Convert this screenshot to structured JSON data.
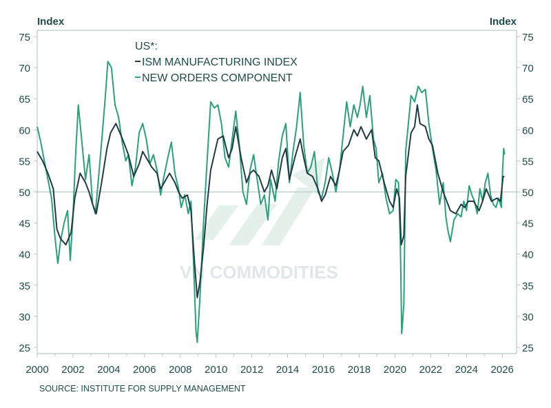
{
  "chart_data": {
    "type": "line",
    "y_axis_title_left": "Index",
    "y_axis_title_right": "Index",
    "legend_title": "US*:",
    "legend_position": "top-left",
    "source": "SOURCE: INSTITUTE FOR SUPPLY MANAGEMENT",
    "watermark": "VN COMMODITIES",
    "xlim": [
      2000,
      2026.8
    ],
    "ylim": [
      24,
      76
    ],
    "x_ticks": [
      "2000",
      "2002",
      "2004",
      "2006",
      "2008",
      "2010",
      "2012",
      "2014",
      "2016",
      "2018",
      "2020",
      "2022",
      "2024",
      "2026"
    ],
    "y_ticks": [
      "25",
      "30",
      "35",
      "40",
      "45",
      "50",
      "55",
      "60",
      "65",
      "70",
      "75"
    ],
    "reference_line": 50,
    "grid": false,
    "colors": {
      "ism": "#1f3a44",
      "new_orders": "#2aa07a",
      "axis": "#b9c7c5",
      "text": "#1f4a4a",
      "reference": "#b9c7c5"
    },
    "series": [
      {
        "name": "ISM MANUFACTURING INDEX",
        "points": [
          [
            2000.0,
            56.5
          ],
          [
            2000.3,
            55.0
          ],
          [
            2000.6,
            53.0
          ],
          [
            2000.9,
            50.5
          ],
          [
            2001.1,
            44.0
          ],
          [
            2001.3,
            42.5
          ],
          [
            2001.6,
            41.5
          ],
          [
            2001.9,
            43.5
          ],
          [
            2002.1,
            49.0
          ],
          [
            2002.4,
            53.0
          ],
          [
            2002.7,
            51.5
          ],
          [
            2002.9,
            50.0
          ],
          [
            2003.1,
            48.0
          ],
          [
            2003.3,
            46.5
          ],
          [
            2003.6,
            51.5
          ],
          [
            2003.9,
            57.0
          ],
          [
            2004.1,
            59.5
          ],
          [
            2004.4,
            61.0
          ],
          [
            2004.7,
            59.0
          ],
          [
            2004.9,
            57.5
          ],
          [
            2005.1,
            56.0
          ],
          [
            2005.4,
            52.5
          ],
          [
            2005.7,
            54.5
          ],
          [
            2005.9,
            56.5
          ],
          [
            2006.1,
            55.5
          ],
          [
            2006.4,
            54.0
          ],
          [
            2006.7,
            53.0
          ],
          [
            2006.9,
            50.5
          ],
          [
            2007.1,
            51.5
          ],
          [
            2007.4,
            53.0
          ],
          [
            2007.7,
            51.5
          ],
          [
            2007.9,
            50.0
          ],
          [
            2008.1,
            49.0
          ],
          [
            2008.4,
            49.5
          ],
          [
            2008.6,
            47.0
          ],
          [
            2008.8,
            38.5
          ],
          [
            2008.95,
            33.0
          ],
          [
            2009.1,
            35.5
          ],
          [
            2009.3,
            41.0
          ],
          [
            2009.5,
            48.0
          ],
          [
            2009.7,
            53.5
          ],
          [
            2009.9,
            56.0
          ],
          [
            2010.1,
            58.5
          ],
          [
            2010.4,
            59.0
          ],
          [
            2010.7,
            55.5
          ],
          [
            2010.9,
            57.0
          ],
          [
            2011.1,
            60.5
          ],
          [
            2011.4,
            55.5
          ],
          [
            2011.7,
            51.5
          ],
          [
            2011.9,
            53.0
          ],
          [
            2012.1,
            53.5
          ],
          [
            2012.4,
            52.5
          ],
          [
            2012.7,
            50.0
          ],
          [
            2012.9,
            51.0
          ],
          [
            2013.1,
            53.5
          ],
          [
            2013.4,
            50.5
          ],
          [
            2013.7,
            55.5
          ],
          [
            2013.9,
            57.0
          ],
          [
            2014.1,
            52.0
          ],
          [
            2014.4,
            55.5
          ],
          [
            2014.7,
            58.5
          ],
          [
            2014.9,
            55.5
          ],
          [
            2015.1,
            53.0
          ],
          [
            2015.4,
            52.5
          ],
          [
            2015.7,
            50.5
          ],
          [
            2015.9,
            48.5
          ],
          [
            2016.1,
            49.5
          ],
          [
            2016.4,
            52.5
          ],
          [
            2016.7,
            51.0
          ],
          [
            2016.9,
            53.5
          ],
          [
            2017.1,
            56.5
          ],
          [
            2017.4,
            57.5
          ],
          [
            2017.7,
            60.0
          ],
          [
            2017.9,
            59.0
          ],
          [
            2018.1,
            60.5
          ],
          [
            2018.4,
            58.5
          ],
          [
            2018.7,
            60.0
          ],
          [
            2018.9,
            55.5
          ],
          [
            2019.1,
            55.0
          ],
          [
            2019.4,
            51.5
          ],
          [
            2019.7,
            48.5
          ],
          [
            2019.9,
            47.5
          ],
          [
            2020.1,
            50.5
          ],
          [
            2020.25,
            49.0
          ],
          [
            2020.35,
            41.5
          ],
          [
            2020.5,
            43.0
          ],
          [
            2020.6,
            52.5
          ],
          [
            2020.9,
            59.5
          ],
          [
            2021.1,
            60.5
          ],
          [
            2021.25,
            64.0
          ],
          [
            2021.4,
            61.0
          ],
          [
            2021.7,
            60.5
          ],
          [
            2021.9,
            58.5
          ],
          [
            2022.1,
            57.5
          ],
          [
            2022.4,
            53.0
          ],
          [
            2022.7,
            50.0
          ],
          [
            2022.9,
            48.5
          ],
          [
            2023.1,
            47.0
          ],
          [
            2023.4,
            46.5
          ],
          [
            2023.7,
            48.0
          ],
          [
            2023.9,
            47.5
          ],
          [
            2024.1,
            48.5
          ],
          [
            2024.4,
            48.5
          ],
          [
            2024.7,
            47.0
          ],
          [
            2024.9,
            48.5
          ],
          [
            2025.1,
            50.5
          ],
          [
            2025.4,
            48.5
          ],
          [
            2025.7,
            49.0
          ],
          [
            2025.9,
            48.5
          ],
          [
            2026.05,
            52.5
          ],
          [
            2026.12,
            52.5
          ]
        ]
      },
      {
        "name": "NEW ORDERS COMPONENT",
        "points": [
          [
            2000.0,
            60.5
          ],
          [
            2000.2,
            58.0
          ],
          [
            2000.4,
            55.0
          ],
          [
            2000.6,
            52.0
          ],
          [
            2000.8,
            49.0
          ],
          [
            2001.0,
            42.5
          ],
          [
            2001.15,
            38.5
          ],
          [
            2001.3,
            42.0
          ],
          [
            2001.5,
            45.0
          ],
          [
            2001.7,
            47.0
          ],
          [
            2001.85,
            39.0
          ],
          [
            2002.0,
            46.0
          ],
          [
            2002.15,
            56.0
          ],
          [
            2002.3,
            64.0
          ],
          [
            2002.5,
            58.0
          ],
          [
            2002.7,
            52.0
          ],
          [
            2002.9,
            56.0
          ],
          [
            2003.1,
            48.0
          ],
          [
            2003.25,
            46.5
          ],
          [
            2003.45,
            53.0
          ],
          [
            2003.6,
            58.0
          ],
          [
            2003.8,
            65.0
          ],
          [
            2003.95,
            71.0
          ],
          [
            2004.15,
            70.0
          ],
          [
            2004.35,
            64.0
          ],
          [
            2004.55,
            62.0
          ],
          [
            2004.75,
            58.0
          ],
          [
            2004.95,
            55.0
          ],
          [
            2005.1,
            56.0
          ],
          [
            2005.3,
            51.0
          ],
          [
            2005.5,
            54.0
          ],
          [
            2005.7,
            59.5
          ],
          [
            2005.9,
            61.0
          ],
          [
            2006.1,
            58.5
          ],
          [
            2006.3,
            54.5
          ],
          [
            2006.5,
            56.0
          ],
          [
            2006.7,
            53.5
          ],
          [
            2006.9,
            49.5
          ],
          [
            2007.05,
            52.0
          ],
          [
            2007.3,
            55.5
          ],
          [
            2007.5,
            58.0
          ],
          [
            2007.7,
            53.0
          ],
          [
            2007.9,
            50.5
          ],
          [
            2008.05,
            47.5
          ],
          [
            2008.25,
            49.5
          ],
          [
            2008.45,
            46.5
          ],
          [
            2008.6,
            48.5
          ],
          [
            2008.75,
            38.0
          ],
          [
            2008.88,
            27.5
          ],
          [
            2008.95,
            25.8
          ],
          [
            2009.1,
            33.0
          ],
          [
            2009.3,
            45.0
          ],
          [
            2009.5,
            55.0
          ],
          [
            2009.7,
            64.5
          ],
          [
            2009.9,
            63.5
          ],
          [
            2010.1,
            64.0
          ],
          [
            2010.3,
            61.0
          ],
          [
            2010.5,
            55.5
          ],
          [
            2010.7,
            54.0
          ],
          [
            2010.9,
            58.5
          ],
          [
            2011.1,
            63.0
          ],
          [
            2011.3,
            57.5
          ],
          [
            2011.5,
            50.0
          ],
          [
            2011.7,
            48.0
          ],
          [
            2011.9,
            53.5
          ],
          [
            2012.1,
            56.0
          ],
          [
            2012.3,
            52.0
          ],
          [
            2012.5,
            48.0
          ],
          [
            2012.7,
            49.5
          ],
          [
            2012.9,
            45.5
          ],
          [
            2013.05,
            52.0
          ],
          [
            2013.3,
            48.5
          ],
          [
            2013.5,
            55.0
          ],
          [
            2013.7,
            59.0
          ],
          [
            2013.9,
            61.0
          ],
          [
            2014.1,
            51.5
          ],
          [
            2014.3,
            56.5
          ],
          [
            2014.5,
            60.5
          ],
          [
            2014.7,
            66.0
          ],
          [
            2014.9,
            57.5
          ],
          [
            2015.1,
            53.0
          ],
          [
            2015.3,
            54.0
          ],
          [
            2015.5,
            56.5
          ],
          [
            2015.7,
            50.0
          ],
          [
            2015.9,
            49.0
          ],
          [
            2016.1,
            51.5
          ],
          [
            2016.3,
            55.5
          ],
          [
            2016.5,
            53.0
          ],
          [
            2016.7,
            50.0
          ],
          [
            2016.9,
            53.5
          ],
          [
            2017.1,
            59.0
          ],
          [
            2017.3,
            64.5
          ],
          [
            2017.5,
            60.5
          ],
          [
            2017.7,
            64.0
          ],
          [
            2017.9,
            62.0
          ],
          [
            2018.05,
            64.0
          ],
          [
            2018.2,
            67.0
          ],
          [
            2018.4,
            62.0
          ],
          [
            2018.6,
            65.5
          ],
          [
            2018.8,
            58.5
          ],
          [
            2018.95,
            57.0
          ],
          [
            2019.1,
            51.5
          ],
          [
            2019.3,
            53.0
          ],
          [
            2019.5,
            49.0
          ],
          [
            2019.7,
            46.5
          ],
          [
            2019.9,
            47.0
          ],
          [
            2020.05,
            52.0
          ],
          [
            2020.2,
            51.5
          ],
          [
            2020.3,
            42.0
          ],
          [
            2020.38,
            27.2
          ],
          [
            2020.5,
            32.0
          ],
          [
            2020.6,
            56.5
          ],
          [
            2020.75,
            61.0
          ],
          [
            2020.9,
            65.5
          ],
          [
            2021.1,
            64.5
          ],
          [
            2021.3,
            67.0
          ],
          [
            2021.5,
            66.0
          ],
          [
            2021.7,
            66.5
          ],
          [
            2021.9,
            61.0
          ],
          [
            2022.1,
            57.0
          ],
          [
            2022.3,
            53.5
          ],
          [
            2022.5,
            48.0
          ],
          [
            2022.7,
            51.5
          ],
          [
            2022.85,
            46.0
          ],
          [
            2022.95,
            44.0
          ],
          [
            2023.1,
            42.0
          ],
          [
            2023.3,
            45.5
          ],
          [
            2023.5,
            46.5
          ],
          [
            2023.7,
            46.0
          ],
          [
            2023.85,
            48.5
          ],
          [
            2024.0,
            47.0
          ],
          [
            2024.15,
            51.0
          ],
          [
            2024.3,
            49.5
          ],
          [
            2024.45,
            48.5
          ],
          [
            2024.6,
            46.5
          ],
          [
            2024.75,
            50.5
          ],
          [
            2024.9,
            48.5
          ],
          [
            2025.05,
            51.5
          ],
          [
            2025.2,
            53.0
          ],
          [
            2025.35,
            49.5
          ],
          [
            2025.5,
            48.0
          ],
          [
            2025.65,
            47.5
          ],
          [
            2025.8,
            49.0
          ],
          [
            2025.95,
            47.5
          ],
          [
            2026.02,
            53.5
          ],
          [
            2026.08,
            57.0
          ],
          [
            2026.13,
            56.0
          ]
        ]
      }
    ]
  }
}
